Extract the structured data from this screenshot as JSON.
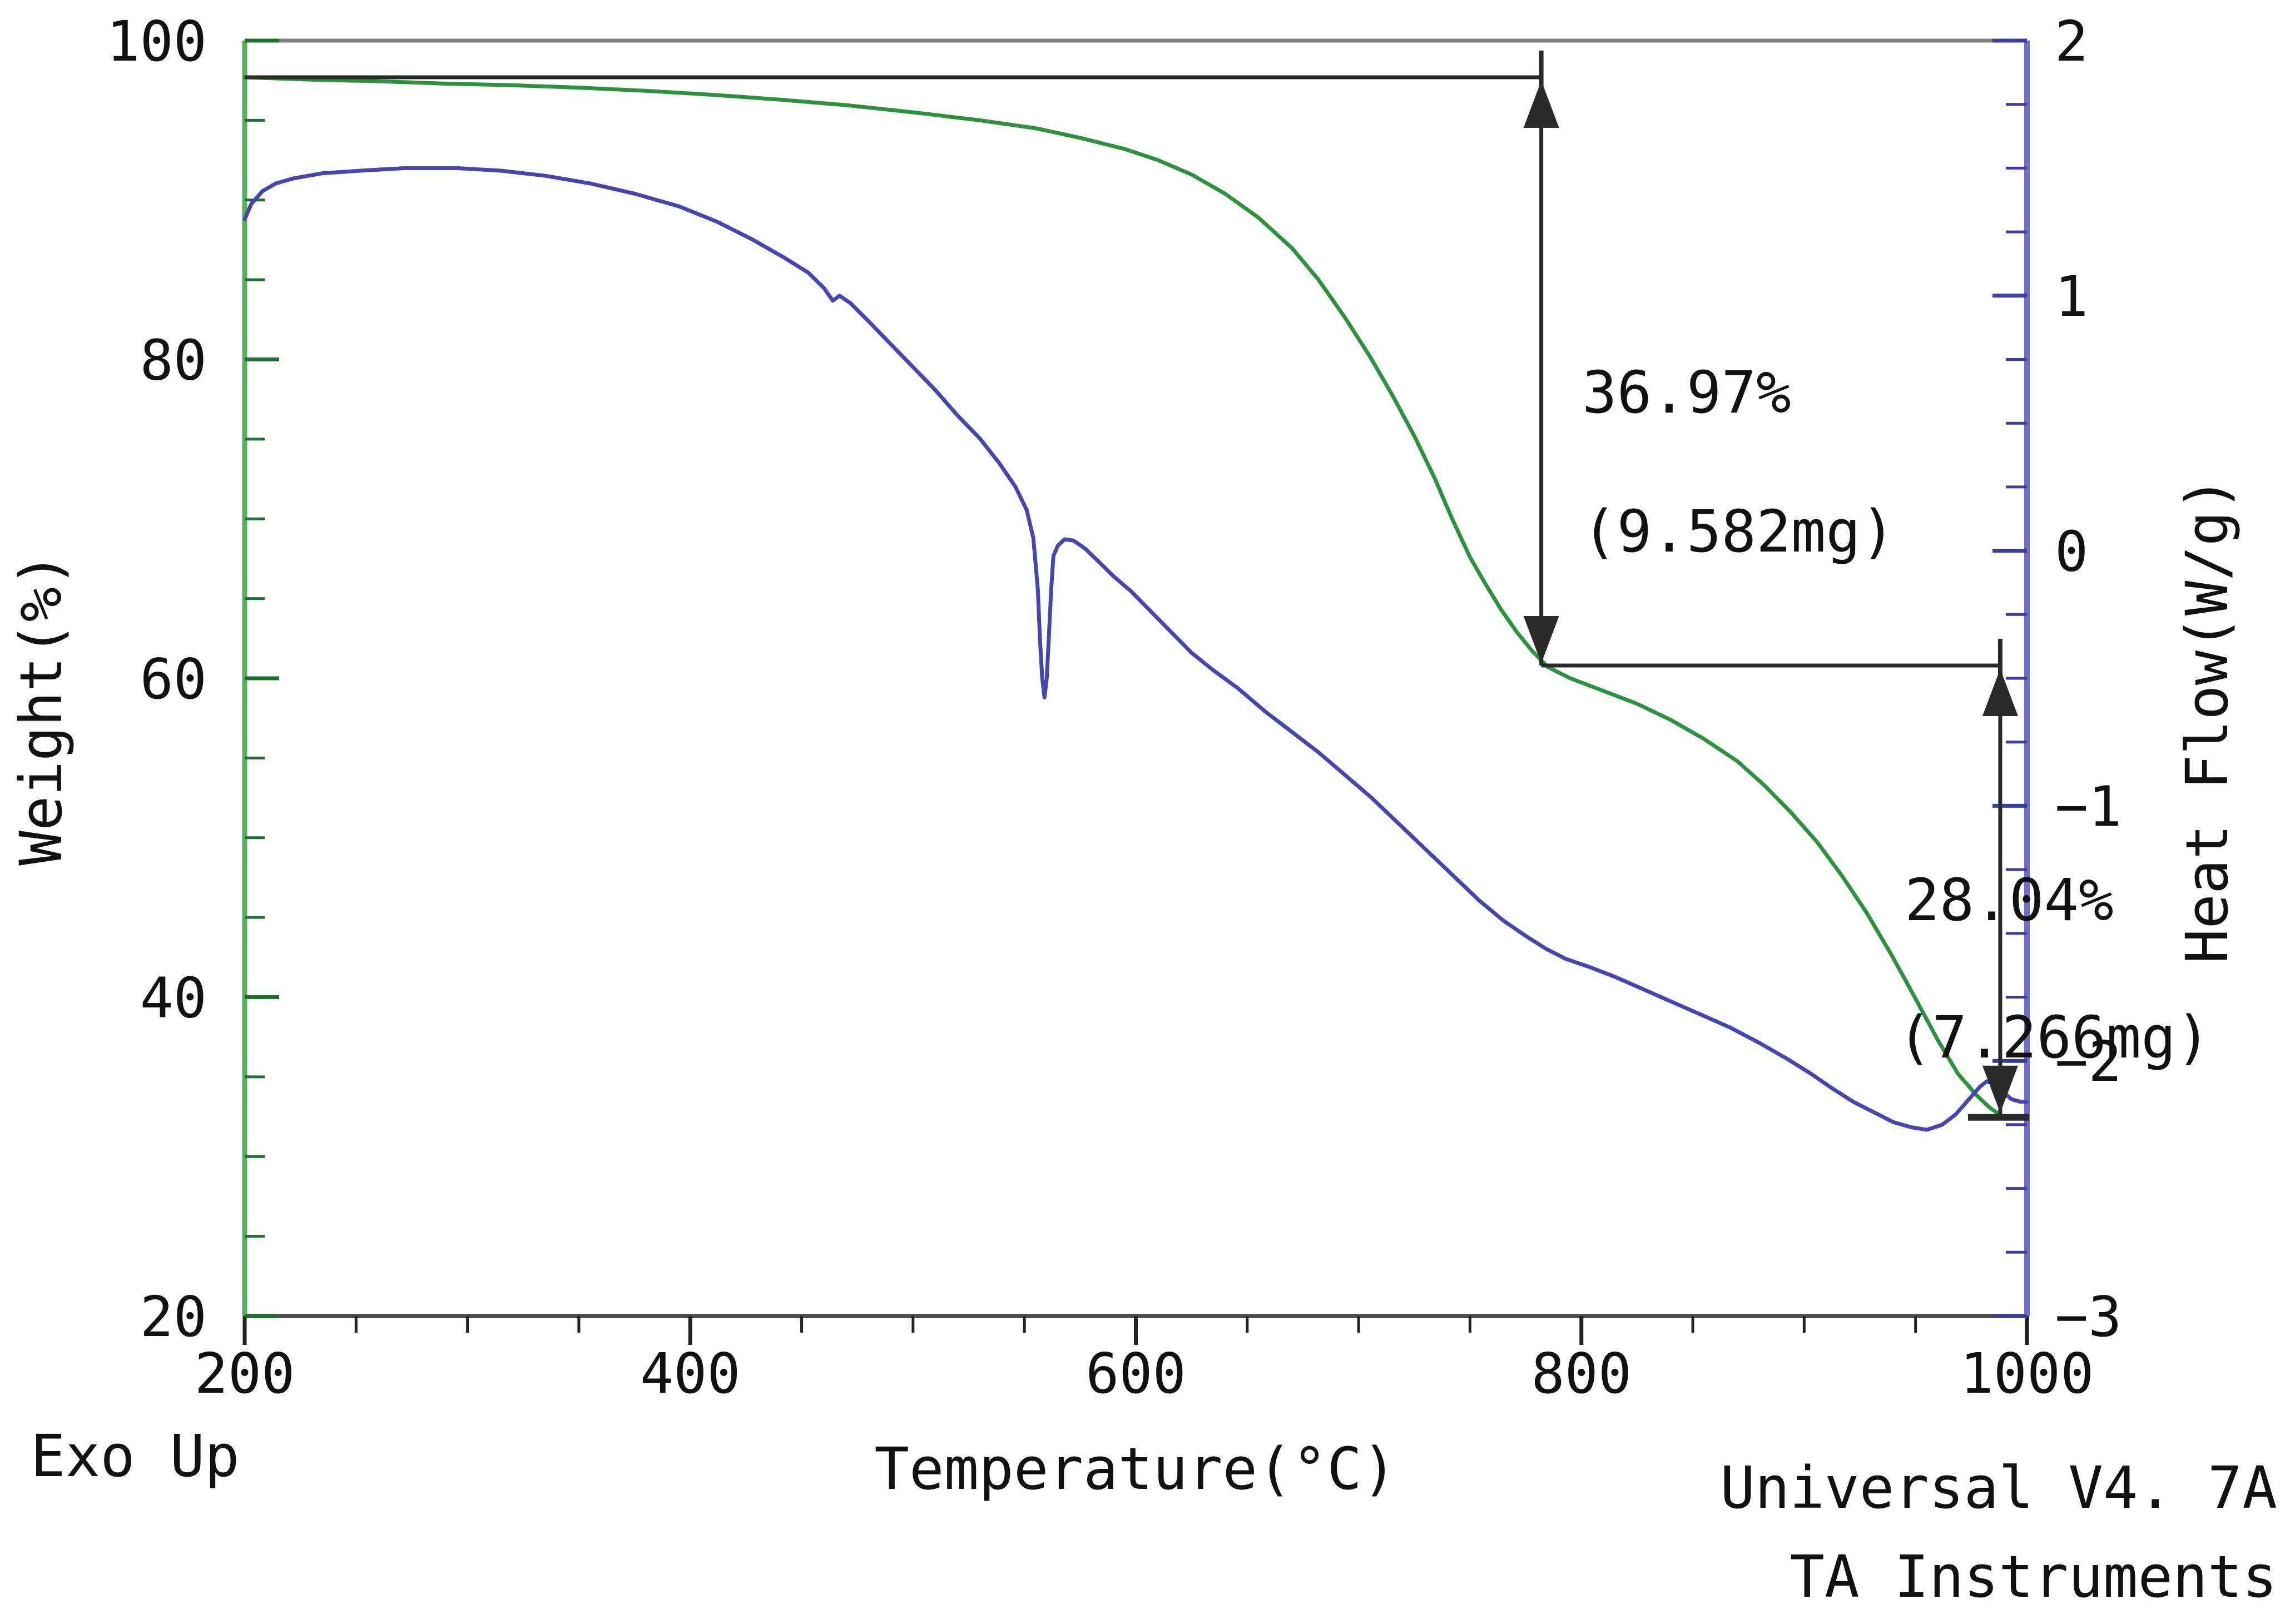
{
  "footer": {
    "exo_up": "Exo Up",
    "credit_line1": "Universal V4. 7A",
    "credit_line2": "TA Instruments"
  },
  "chart_data": {
    "type": "line",
    "title": "",
    "xlabel": "Temperature(°C)",
    "ylabel_left": "Weight(%)",
    "ylabel_right": "Heat Flow(W/g)",
    "grid": false,
    "legend": "none",
    "x_axis": {
      "label": "Temperature(°C)",
      "min": 200,
      "max": 1000,
      "major_step": 200,
      "minor_step": 50,
      "tick_labels": [
        "200",
        "400",
        "600",
        "800",
        "1000"
      ],
      "line_color": "#4d4d4d",
      "tick_color": "#222222"
    },
    "left_axis": {
      "label": "Weight(%)",
      "min": 20,
      "max": 100,
      "major_step": 20,
      "minor_step": 5,
      "tick_labels": [
        "100",
        "80",
        "60",
        "40",
        "20"
      ],
      "tick_values": [
        100,
        80,
        60,
        40,
        20
      ],
      "line_color": "#5aae62",
      "tick_color": "#1e7030"
    },
    "right_axis": {
      "label": "Heat Flow(W/g)",
      "min": -3,
      "max": 2,
      "major_step": 1,
      "minor_step": 0.25,
      "tick_labels": [
        "2",
        "1",
        "0",
        "−1",
        "−2",
        "−3"
      ],
      "tick_values": [
        2,
        1,
        0,
        -1,
        -2,
        -3
      ],
      "line_color": "#6b6bd1",
      "tick_color": "#3d3da0"
    },
    "frame": {
      "top_color": "#808080",
      "annotation_color": "#2a2a2a",
      "background": "#ffffff"
    },
    "series": [
      {
        "name": "Weight",
        "axis": "left",
        "color": "#2e9140",
        "points": [
          [
            200,
            97.7
          ],
          [
            230,
            97.55
          ],
          [
            260,
            97.45
          ],
          [
            290,
            97.3
          ],
          [
            320,
            97.2
          ],
          [
            350,
            97.05
          ],
          [
            380,
            96.85
          ],
          [
            410,
            96.6
          ],
          [
            440,
            96.3
          ],
          [
            470,
            95.95
          ],
          [
            500,
            95.5
          ],
          [
            530,
            95.0
          ],
          [
            555,
            94.5
          ],
          [
            575,
            93.9
          ],
          [
            595,
            93.2
          ],
          [
            610,
            92.5
          ],
          [
            625,
            91.6
          ],
          [
            640,
            90.4
          ],
          [
            655,
            88.9
          ],
          [
            670,
            87.0
          ],
          [
            682,
            85.0
          ],
          [
            694,
            82.6
          ],
          [
            705,
            80.2
          ],
          [
            715,
            77.8
          ],
          [
            725,
            75.2
          ],
          [
            734,
            72.6
          ],
          [
            742,
            70.0
          ],
          [
            750,
            67.6
          ],
          [
            757,
            65.9
          ],
          [
            764,
            64.3
          ],
          [
            771,
            62.9
          ],
          [
            778,
            61.7
          ],
          [
            785,
            60.7
          ],
          [
            795,
            60.0
          ],
          [
            810,
            59.2
          ],
          [
            825,
            58.4
          ],
          [
            840,
            57.4
          ],
          [
            855,
            56.2
          ],
          [
            870,
            54.8
          ],
          [
            882,
            53.3
          ],
          [
            894,
            51.6
          ],
          [
            906,
            49.7
          ],
          [
            917,
            47.6
          ],
          [
            928,
            45.3
          ],
          [
            939,
            42.7
          ],
          [
            950,
            39.9
          ],
          [
            960,
            37.3
          ],
          [
            969,
            35.2
          ],
          [
            977,
            33.9
          ],
          [
            983,
            33.1
          ],
          [
            988,
            32.6
          ]
        ]
      },
      {
        "name": "Heat Flow",
        "axis": "right",
        "color": "#4646ae",
        "points": [
          [
            200,
            1.3
          ],
          [
            203,
            1.36
          ],
          [
            208,
            1.41
          ],
          [
            214,
            1.44
          ],
          [
            222,
            1.46
          ],
          [
            235,
            1.48
          ],
          [
            252,
            1.49
          ],
          [
            272,
            1.5
          ],
          [
            295,
            1.5
          ],
          [
            315,
            1.49
          ],
          [
            335,
            1.47
          ],
          [
            355,
            1.44
          ],
          [
            375,
            1.4
          ],
          [
            395,
            1.35
          ],
          [
            412,
            1.29
          ],
          [
            428,
            1.22
          ],
          [
            442,
            1.15
          ],
          [
            453,
            1.09
          ],
          [
            460,
            1.03
          ],
          [
            464,
            0.98
          ],
          [
            467,
            1.0
          ],
          [
            472,
            0.97
          ],
          [
            480,
            0.9
          ],
          [
            490,
            0.81
          ],
          [
            500,
            0.72
          ],
          [
            510,
            0.63
          ],
          [
            520,
            0.53
          ],
          [
            530,
            0.44
          ],
          [
            539,
            0.34
          ],
          [
            546,
            0.25
          ],
          [
            551,
            0.16
          ],
          [
            554,
            0.05
          ],
          [
            556,
            -0.15
          ],
          [
            557,
            -0.35
          ],
          [
            558,
            -0.5
          ],
          [
            559,
            -0.575
          ],
          [
            560,
            -0.5
          ],
          [
            561,
            -0.33
          ],
          [
            562,
            -0.15
          ],
          [
            563,
            -0.02
          ],
          [
            565,
            0.02
          ],
          [
            568,
            0.045
          ],
          [
            572,
            0.04
          ],
          [
            577,
            0.01
          ],
          [
            583,
            -0.04
          ],
          [
            590,
            -0.1
          ],
          [
            598,
            -0.16
          ],
          [
            607,
            -0.24
          ],
          [
            616,
            -0.32
          ],
          [
            625,
            -0.4
          ],
          [
            635,
            -0.47
          ],
          [
            646,
            -0.54
          ],
          [
            658,
            -0.63
          ],
          [
            670,
            -0.71
          ],
          [
            682,
            -0.79
          ],
          [
            694,
            -0.88
          ],
          [
            706,
            -0.97
          ],
          [
            718,
            -1.07
          ],
          [
            730,
            -1.17
          ],
          [
            742,
            -1.27
          ],
          [
            754,
            -1.37
          ],
          [
            765,
            -1.45
          ],
          [
            775,
            -1.51
          ],
          [
            784,
            -1.56
          ],
          [
            793,
            -1.6
          ],
          [
            803,
            -1.63
          ],
          [
            815,
            -1.67
          ],
          [
            828,
            -1.72
          ],
          [
            841,
            -1.77
          ],
          [
            854,
            -1.82
          ],
          [
            867,
            -1.87
          ],
          [
            880,
            -1.93
          ],
          [
            892,
            -1.99
          ],
          [
            903,
            -2.05
          ],
          [
            913,
            -2.11
          ],
          [
            922,
            -2.16
          ],
          [
            931,
            -2.2
          ],
          [
            940,
            -2.24
          ],
          [
            948,
            -2.26
          ],
          [
            955,
            -2.27
          ],
          [
            962,
            -2.25
          ],
          [
            968,
            -2.21
          ],
          [
            974,
            -2.15
          ],
          [
            979,
            -2.1
          ],
          [
            982,
            -2.08
          ],
          [
            985,
            -2.09
          ],
          [
            989,
            -2.12
          ],
          [
            993,
            -2.15
          ],
          [
            997,
            -2.16
          ],
          [
            1000,
            -2.16
          ]
        ]
      }
    ],
    "annotations": [
      {
        "name": "step-1",
        "percent": "36.97%",
        "mass": "(9.582mg)",
        "hline": {
          "weight": 97.7,
          "t_from": 200,
          "t_to": 782
        },
        "vline": {
          "t": 782,
          "w_from": 97.7,
          "w_to": 60.8
        },
        "endcap": false
      },
      {
        "name": "step-2",
        "percent": "28.04%",
        "mass": "(7.266mg)",
        "hline": {
          "weight": 60.8,
          "t_from": 782,
          "t_to": 988
        },
        "vline": {
          "t": 988,
          "w_from": 60.8,
          "w_to": 32.6
        },
        "endcap": true
      }
    ]
  }
}
